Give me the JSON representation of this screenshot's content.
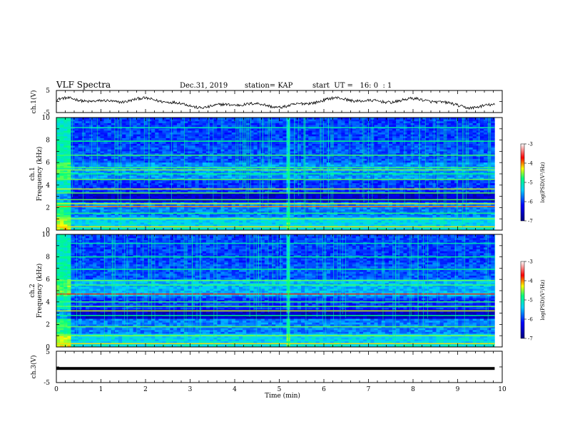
{
  "header": {
    "title": "VLF Spectra",
    "date": "Dec.31, 2019",
    "station": "station= KAP",
    "start": "start  UT =   16: 0  : 1"
  },
  "chart_data": [
    {
      "type": "line",
      "ylabel": "ch.1(V)",
      "ylim": [
        -5,
        5
      ],
      "yticks": [
        "5",
        "-5"
      ],
      "xlim": [
        0,
        10
      ],
      "color": "#000000"
    },
    {
      "type": "heatmap",
      "ylabel": "Frequency (kHz)",
      "channel_label": "ch.1",
      "ylim": [
        0,
        10
      ],
      "yticks": [
        "0",
        "2",
        "4",
        "6",
        "8",
        "10"
      ],
      "xlim": [
        0,
        10
      ],
      "colorbar": {
        "label": "log(PSD)(V²/Hz)",
        "ticks": [
          "-3",
          "-4",
          "-5",
          "-6",
          "-7"
        ],
        "range": [
          -7,
          -3
        ]
      }
    },
    {
      "type": "heatmap",
      "ylabel": "Frequency (kHz)",
      "channel_label": "ch.2",
      "ylim": [
        0,
        10
      ],
      "yticks": [
        "0",
        "2",
        "4",
        "6",
        "8",
        "10"
      ],
      "xlim": [
        0,
        10
      ],
      "colorbar": {
        "label": "log(PSD)(V²/Hz)",
        "ticks": [
          "-3",
          "-4",
          "-5",
          "-6",
          "-7"
        ],
        "range": [
          -7,
          -3
        ]
      }
    },
    {
      "type": "line",
      "ylabel": "ch.3(V)",
      "ylim": [
        -5,
        5
      ],
      "yticks": [
        "5",
        "-5"
      ],
      "xlim": [
        0,
        10
      ],
      "value": -0.5,
      "color": "#000000"
    }
  ],
  "xaxis": {
    "label": "Time (min)",
    "ticks": [
      "0",
      "1",
      "2",
      "3",
      "4",
      "5",
      "6",
      "7",
      "8",
      "9",
      "10"
    ]
  }
}
